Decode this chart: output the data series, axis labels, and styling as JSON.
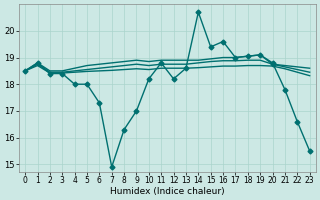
{
  "background_color": "#cce8e4",
  "grid_color": "#aad4cc",
  "line_color": "#007070",
  "xlabel": "Humidex (Indice chaleur)",
  "xlim": [
    -0.5,
    23.5
  ],
  "ylim": [
    14.7,
    21.0
  ],
  "yticks": [
    15,
    16,
    17,
    18,
    19,
    20
  ],
  "xticks": [
    0,
    1,
    2,
    3,
    4,
    5,
    6,
    7,
    8,
    9,
    10,
    11,
    12,
    13,
    14,
    15,
    16,
    17,
    18,
    19,
    20,
    21,
    22,
    23
  ],
  "series": [
    {
      "x": [
        0,
        1,
        2,
        3,
        4,
        5,
        6,
        7,
        8,
        9,
        10,
        11,
        12,
        13,
        14,
        15,
        16,
        17,
        18,
        19,
        20,
        21,
        22,
        23
      ],
      "y": [
        18.5,
        18.8,
        18.4,
        18.4,
        18.0,
        18.0,
        17.3,
        14.9,
        16.3,
        17.0,
        18.2,
        18.8,
        18.2,
        18.6,
        20.7,
        19.4,
        19.6,
        19.0,
        19.05,
        19.1,
        18.8,
        17.8,
        16.6,
        15.5
      ],
      "marker": "D",
      "linewidth": 1.0,
      "markersize": 2.5,
      "has_marker": true
    },
    {
      "x": [
        0,
        1,
        2,
        3,
        4,
        5,
        6,
        7,
        8,
        9,
        10,
        11,
        12,
        13,
        14,
        15,
        16,
        17,
        18,
        19,
        20,
        21,
        22,
        23
      ],
      "y": [
        18.5,
        18.8,
        18.5,
        18.5,
        18.6,
        18.7,
        18.75,
        18.8,
        18.85,
        18.9,
        18.85,
        18.9,
        18.9,
        18.9,
        18.9,
        18.95,
        19.0,
        19.0,
        19.05,
        19.1,
        18.75,
        18.7,
        18.65,
        18.6
      ],
      "marker": "D",
      "linewidth": 1.0,
      "markersize": 2.5,
      "has_marker": true,
      "marker_only_at": [
        20
      ]
    },
    {
      "x": [
        0,
        1,
        2,
        3,
        4,
        5,
        6,
        7,
        8,
        9,
        10,
        11,
        12,
        13,
        14,
        15,
        16,
        17,
        18,
        19,
        20,
        21,
        22,
        23
      ],
      "y": [
        18.5,
        18.75,
        18.45,
        18.45,
        18.5,
        18.55,
        18.6,
        18.65,
        18.7,
        18.75,
        18.7,
        18.75,
        18.75,
        18.75,
        18.8,
        18.85,
        18.88,
        18.88,
        18.9,
        18.9,
        18.75,
        18.65,
        18.55,
        18.45
      ],
      "marker": null,
      "linewidth": 1.0,
      "has_marker": false
    },
    {
      "x": [
        0,
        1,
        2,
        3,
        4,
        5,
        6,
        7,
        8,
        9,
        10,
        11,
        12,
        13,
        14,
        15,
        16,
        17,
        18,
        19,
        20,
        21,
        22,
        23
      ],
      "y": [
        18.5,
        18.7,
        18.42,
        18.42,
        18.45,
        18.48,
        18.5,
        18.52,
        18.55,
        18.58,
        18.55,
        18.6,
        18.6,
        18.6,
        18.62,
        18.65,
        18.68,
        18.68,
        18.7,
        18.7,
        18.68,
        18.58,
        18.45,
        18.32
      ],
      "marker": null,
      "linewidth": 1.0,
      "has_marker": false
    }
  ]
}
